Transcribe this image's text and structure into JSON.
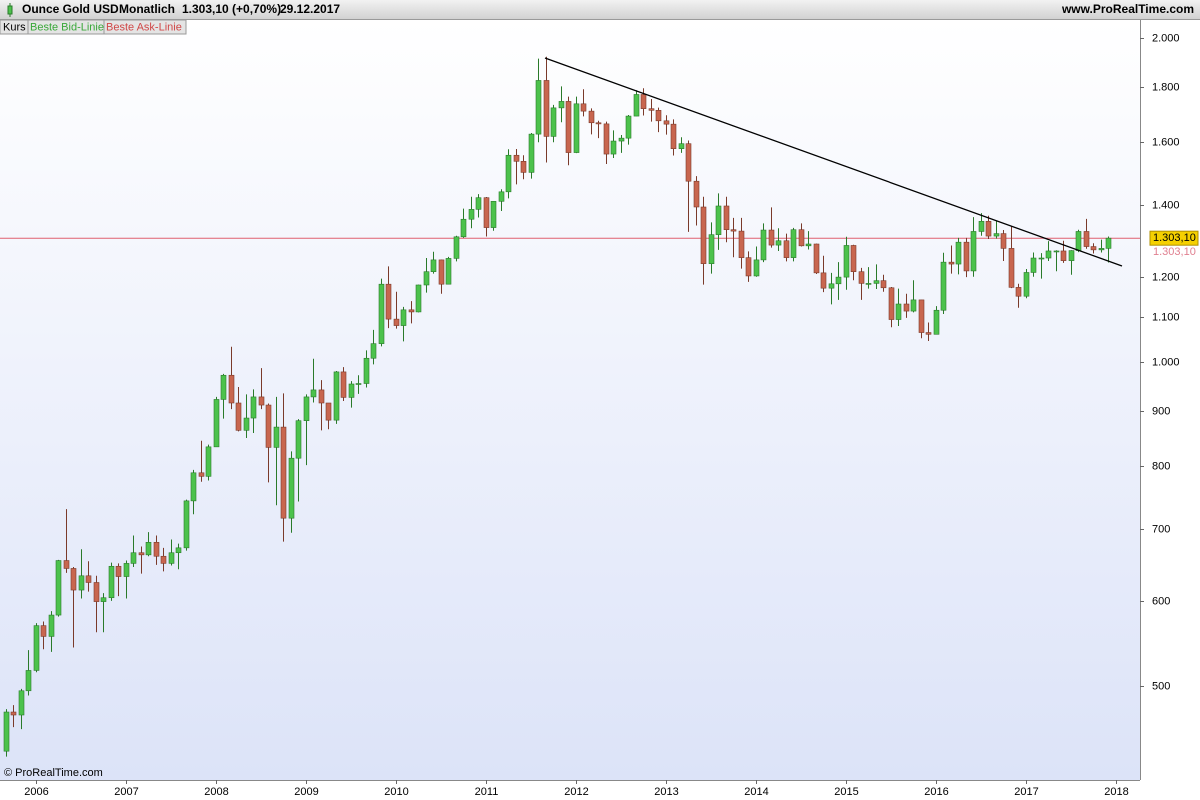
{
  "chart_data": {
    "type": "candlestick",
    "title": "Ounce Gold USD",
    "period": "Monatlich",
    "change": "1.303,10 (+0,70%)",
    "date": "29.12.2017",
    "source": "www.ProRealTime.com",
    "watermark": "© ProRealTime.com",
    "legend": [
      "Kurs",
      "Beste Bid-Linie",
      "Beste Ask-Linie"
    ],
    "log_scale": true,
    "grid": false,
    "up_color": "#4cc24c",
    "down_color": "#c8664f",
    "ylim": [
      409,
      2078
    ],
    "yticks": [
      500,
      600,
      700,
      800,
      900,
      {
        "value": 1000,
        "label": "1.000"
      },
      {
        "value": 1100,
        "label": "1.100"
      },
      {
        "value": 1200,
        "label": "1.200"
      },
      {
        "value": 1400,
        "label": "1.400"
      },
      {
        "value": 1600,
        "label": "1.600"
      },
      {
        "value": 1800,
        "label": "1.800"
      },
      {
        "value": 2000,
        "label": "2.000"
      }
    ],
    "price_line": {
      "value": 1303.1,
      "bid_label": "1.303,10",
      "ask_label": "1.303,10"
    },
    "categories": [
      null,
      null,
      null,
      null,
      "2006",
      null,
      null,
      null,
      null,
      null,
      null,
      null,
      null,
      null,
      null,
      null,
      "2007",
      null,
      null,
      null,
      null,
      null,
      null,
      null,
      null,
      null,
      null,
      null,
      "2008",
      null,
      null,
      null,
      null,
      null,
      null,
      null,
      null,
      null,
      null,
      null,
      "2009",
      null,
      null,
      null,
      null,
      null,
      null,
      null,
      null,
      null,
      null,
      null,
      "2010",
      null,
      null,
      null,
      null,
      null,
      null,
      null,
      null,
      null,
      null,
      null,
      "2011",
      null,
      null,
      null,
      null,
      null,
      null,
      null,
      null,
      null,
      null,
      null,
      "2012",
      null,
      null,
      null,
      null,
      null,
      null,
      null,
      null,
      null,
      null,
      null,
      "2013",
      null,
      null,
      null,
      null,
      null,
      null,
      null,
      null,
      null,
      null,
      null,
      "2014",
      null,
      null,
      null,
      null,
      null,
      null,
      null,
      null,
      null,
      null,
      null,
      "2015",
      null,
      null,
      null,
      null,
      null,
      null,
      null,
      null,
      null,
      null,
      null,
      "2016",
      null,
      null,
      null,
      null,
      null,
      null,
      null,
      null,
      null,
      null,
      null,
      "2017",
      null,
      null,
      null,
      null,
      null,
      null,
      null,
      null,
      null,
      null,
      null,
      "2018"
    ],
    "open": [
      435,
      473,
      470,
      495,
      517,
      569,
      556,
      582,
      654,
      643,
      614,
      633,
      624,
      599,
      604,
      646,
      632,
      650,
      665,
      662,
      680,
      660,
      650,
      665,
      672,
      743,
      789,
      783,
      834,
      923,
      972,
      916,
      864,
      887,
      928,
      912,
      833,
      870,
      716,
      814,
      882,
      928,
      942,
      916,
      883,
      979,
      927,
      954,
      955,
      1008,
      1040,
      1181,
      1096,
      1081,
      1118,
      1113,
      1179,
      1213,
      1244,
      1181,
      1248,
      1307,
      1357,
      1386,
      1421,
      1333,
      1410,
      1439,
      1556,
      1536,
      1500,
      1628,
      1826,
      1620,
      1722,
      1746,
      1565,
      1737,
      1710,
      1668,
      1664,
      1560,
      1604,
      1614,
      1692,
      1772,
      1719,
      1713,
      1675,
      1663,
      1578,
      1595,
      1472,
      1393,
      1234,
      1313,
      1396,
      1327,
      1323,
      1250,
      1202,
      1244,
      1326,
      1284,
      1296,
      1250,
      1327,
      1282,
      1287,
      1210,
      1171,
      1182,
      1199,
      1283,
      1213,
      1183,
      1183,
      1190,
      1172,
      1095,
      1132,
      1115,
      1142,
      1065,
      1061,
      1117,
      1238,
      1233,
      1292,
      1215,
      1322,
      1351,
      1309,
      1316,
      1275,
      1173,
      1151,
      1211,
      1249,
      1249,
      1268,
      1268,
      1242,
      1269,
      1322,
      1280,
      1271,
      1275,
      null
    ],
    "high": [
      476,
      480,
      497,
      540,
      572,
      574,
      587,
      655,
      730,
      645,
      670,
      653,
      633,
      610,
      651,
      650,
      654,
      690,
      674,
      695,
      690,
      672,
      684,
      678,
      745,
      794,
      845,
      838,
      928,
      975,
      1033,
      948,
      933,
      943,
      987,
      915,
      928,
      935,
      826,
      885,
      933,
      1007,
      962,
      913,
      981,
      989,
      960,
      972,
      1025,
      1071,
      1195,
      1227,
      1162,
      1125,
      1139,
      1180,
      1249,
      1266,
      1245,
      1252,
      1310,
      1388,
      1424,
      1432,
      1423,
      1411,
      1447,
      1576,
      1577,
      1556,
      1632,
      1913,
      1921,
      1733,
      1803,
      1764,
      1764,
      1792,
      1720,
      1675,
      1672,
      1641,
      1625,
      1696,
      1788,
      1796,
      1755,
      1723,
      1695,
      1680,
      1617,
      1606,
      1488,
      1424,
      1348,
      1434,
      1424,
      1361,
      1361,
      1267,
      1280,
      1345,
      1392,
      1331,
      1316,
      1332,
      1345,
      1323,
      1288,
      1255,
      1210,
      1238,
      1307,
      1285,
      1223,
      1225,
      1232,
      1205,
      1174,
      1170,
      1157,
      1191,
      1142,
      1088,
      1127,
      1263,
      1283,
      1304,
      1304,
      1363,
      1375,
      1367,
      1352,
      1326,
      1337,
      1182,
      1220,
      1264,
      1262,
      1295,
      1270,
      1296,
      1270,
      1327,
      1358,
      1289,
      1299,
      1308,
      null
    ],
    "low": [
      430,
      458,
      456,
      490,
      515,
      541,
      538,
      580,
      637,
      543,
      603,
      612,
      561,
      561,
      600,
      606,
      603,
      645,
      636,
      660,
      648,
      639,
      647,
      642,
      668,
      722,
      774,
      776,
      834,
      886,
      904,
      862,
      850,
      859,
      904,
      773,
      736,
      681,
      694,
      742,
      802,
      917,
      864,
      866,
      876,
      920,
      907,
      934,
      947,
      995,
      1034,
      1075,
      1074,
      1045,
      1086,
      1112,
      1160,
      1208,
      1157,
      1181,
      1240,
      1304,
      1331,
      1362,
      1308,
      1324,
      1381,
      1419,
      1462,
      1478,
      1480,
      1600,
      1532,
      1600,
      1670,
      1523,
      1563,
      1691,
      1627,
      1614,
      1527,
      1547,
      1564,
      1592,
      1692,
      1694,
      1672,
      1635,
      1626,
      1555,
      1564,
      1321,
      1339,
      1180,
      1208,
      1271,
      1292,
      1251,
      1221,
      1187,
      1200,
      1238,
      1277,
      1268,
      1240,
      1240,
      1280,
      1272,
      1207,
      1161,
      1131,
      1142,
      1167,
      1191,
      1142,
      1170,
      1169,
      1162,
      1077,
      1080,
      1099,
      1112,
      1052,
      1046,
      1062,
      1108,
      1208,
      1206,
      1199,
      1200,
      1310,
      1301,
      1302,
      1241,
      1171,
      1123,
      1146,
      1200,
      1195,
      1241,
      1214,
      1236,
      1205,
      1265,
      1274,
      1261,
      1264,
      1237,
      null
    ],
    "close": [
      473,
      470,
      495,
      517,
      569,
      556,
      582,
      654,
      643,
      614,
      633,
      624,
      599,
      604,
      646,
      632,
      650,
      665,
      662,
      680,
      660,
      650,
      665,
      672,
      743,
      789,
      783,
      834,
      923,
      972,
      916,
      864,
      887,
      928,
      912,
      833,
      870,
      716,
      814,
      882,
      928,
      942,
      916,
      883,
      979,
      927,
      954,
      955,
      1008,
      1040,
      1181,
      1096,
      1081,
      1118,
      1113,
      1179,
      1213,
      1244,
      1181,
      1248,
      1307,
      1357,
      1386,
      1421,
      1333,
      1410,
      1439,
      1556,
      1536,
      1500,
      1628,
      1826,
      1620,
      1722,
      1746,
      1565,
      1737,
      1710,
      1668,
      1664,
      1560,
      1604,
      1614,
      1692,
      1772,
      1719,
      1713,
      1675,
      1663,
      1578,
      1595,
      1472,
      1393,
      1234,
      1313,
      1396,
      1327,
      1323,
      1250,
      1202,
      1244,
      1326,
      1284,
      1296,
      1250,
      1327,
      1282,
      1287,
      1210,
      1171,
      1182,
      1199,
      1283,
      1213,
      1183,
      1183,
      1190,
      1172,
      1095,
      1132,
      1115,
      1142,
      1065,
      1061,
      1117,
      1238,
      1233,
      1292,
      1215,
      1322,
      1351,
      1309,
      1316,
      1275,
      1173,
      1151,
      1211,
      1249,
      1249,
      1268,
      1268,
      1242,
      1269,
      1322,
      1280,
      1271,
      1275,
      1303.1,
      null
    ]
  }
}
